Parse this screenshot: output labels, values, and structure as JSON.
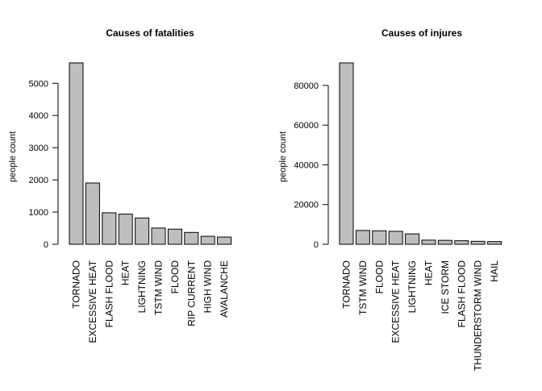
{
  "colors": {
    "bar_fill": "#bebebe",
    "bar_stroke": "#000000",
    "background": "#ffffff"
  },
  "chart_data": [
    {
      "type": "bar",
      "title": "Causes of fatalities",
      "xlabel": "",
      "ylabel": "people count",
      "categories": [
        "TORNADO",
        "EXCESSIVE HEAT",
        "FLASH FLOOD",
        "HEAT",
        "LIGHTNING",
        "TSTM WIND",
        "FLOOD",
        "RIP CURRENT",
        "HIGH WIND",
        "AVALANCHE"
      ],
      "values": [
        5633,
        1903,
        978,
        937,
        816,
        504,
        470,
        368,
        248,
        224
      ],
      "yticks": [
        0,
        1000,
        2000,
        3000,
        4000,
        5000
      ],
      "ylim": [
        0,
        5633
      ],
      "grid": false,
      "legend": "none"
    },
    {
      "type": "bar",
      "title": "Causes of injures",
      "xlabel": "",
      "ylabel": "people count",
      "categories": [
        "TORNADO",
        "TSTM WIND",
        "FLOOD",
        "EXCESSIVE HEAT",
        "LIGHTNING",
        "HEAT",
        "ICE STORM",
        "FLASH FLOOD",
        "THUNDERSTORM WIND",
        "HAIL"
      ],
      "values": [
        91346,
        6957,
        6789,
        6525,
        5230,
        2100,
        1975,
        1777,
        1488,
        1361
      ],
      "yticks": [
        0,
        20000,
        40000,
        60000,
        80000
      ],
      "ylim": [
        0,
        91346
      ],
      "grid": false,
      "legend": "none"
    }
  ]
}
